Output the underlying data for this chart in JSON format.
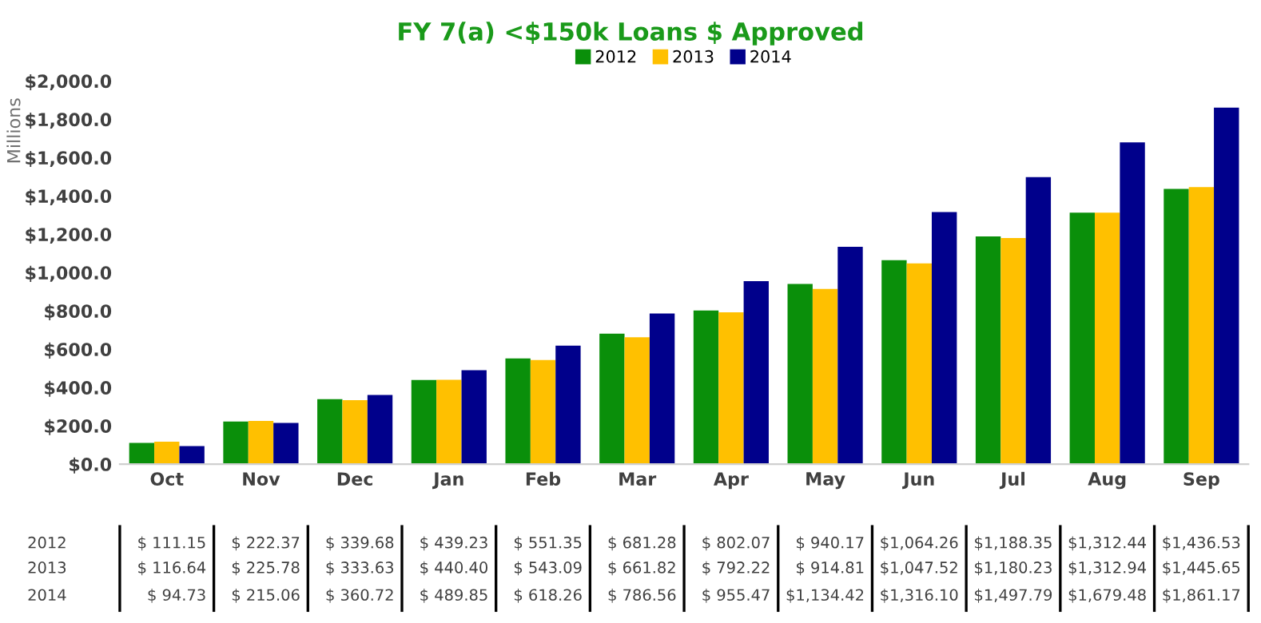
{
  "chart_data": {
    "type": "bar",
    "title": "FY 7(a) <$150k Loans $ Approved",
    "ylabel": "Millions",
    "categories": [
      "Oct",
      "Nov",
      "Dec",
      "Jan",
      "Feb",
      "Mar",
      "Apr",
      "May",
      "Jun",
      "Jul",
      "Aug",
      "Sep"
    ],
    "series": [
      {
        "name": "2012",
        "color": "#0a8f0a",
        "values": [
          111.15,
          222.37,
          339.68,
          439.23,
          551.35,
          681.28,
          802.07,
          940.17,
          1064.26,
          1188.35,
          1312.44,
          1436.53
        ],
        "value_labels": [
          "$ 111.15",
          "$ 222.37",
          "$ 339.68",
          "$ 439.23",
          "$ 551.35",
          "$ 681.28",
          "$ 802.07",
          "$ 940.17",
          "$1,064.26",
          "$1,188.35",
          "$1,312.44",
          "$1,436.53"
        ]
      },
      {
        "name": "2013",
        "color": "#ffc000",
        "values": [
          116.64,
          225.78,
          333.63,
          440.4,
          543.09,
          661.82,
          792.22,
          914.81,
          1047.52,
          1180.23,
          1312.94,
          1445.65
        ],
        "value_labels": [
          "$ 116.64",
          "$ 225.78",
          "$ 333.63",
          "$ 440.40",
          "$ 543.09",
          "$ 661.82",
          "$ 792.22",
          "$ 914.81",
          "$1,047.52",
          "$1,180.23",
          "$1,312.94",
          "$1,445.65"
        ]
      },
      {
        "name": "2014",
        "color": "#00008b",
        "values": [
          94.73,
          215.06,
          360.72,
          489.85,
          618.26,
          786.56,
          955.47,
          1134.42,
          1316.1,
          1497.79,
          1679.48,
          1861.17
        ],
        "value_labels": [
          "$ 94.73",
          "$ 215.06",
          "$ 360.72",
          "$ 489.85",
          "$ 618.26",
          "$ 786.56",
          "$ 955.47",
          "$1,134.42",
          "$1,316.10",
          "$1,497.79",
          "$1,679.48",
          "$1,861.17"
        ]
      }
    ],
    "ylim": [
      0,
      2000
    ],
    "yticks": [
      {
        "value": 0,
        "label": "$0.0"
      },
      {
        "value": 200,
        "label": "$200.0"
      },
      {
        "value": 400,
        "label": "$400.0"
      },
      {
        "value": 600,
        "label": "$600.0"
      },
      {
        "value": 800,
        "label": "$800.0"
      },
      {
        "value": 1000,
        "label": "$1,000.0"
      },
      {
        "value": 1200,
        "label": "$1,200.0"
      },
      {
        "value": 1400,
        "label": "$1,400.0"
      },
      {
        "value": 1600,
        "label": "$1,600.0"
      },
      {
        "value": 1800,
        "label": "$1,800.0"
      },
      {
        "value": 2000,
        "label": "$2,000.0"
      }
    ],
    "grid": false,
    "legend": "top"
  }
}
